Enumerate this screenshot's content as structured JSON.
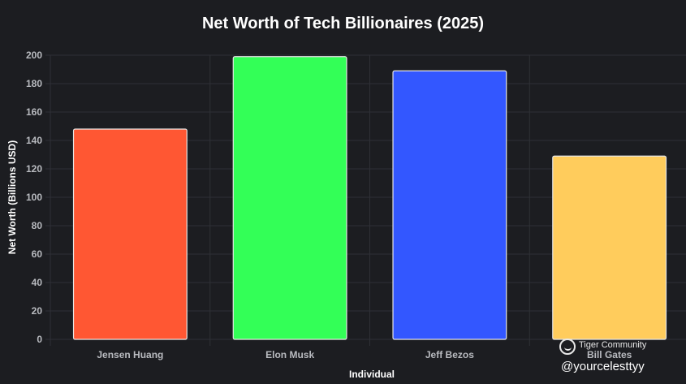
{
  "chart_data": {
    "type": "bar",
    "title": "Net Worth of Tech Billionaires (2025)",
    "xlabel": "Individual",
    "ylabel": "Net Worth (Billions USD)",
    "categories": [
      "Jensen Huang",
      "Elon Musk",
      "Jeff Bezos",
      "Bill Gates"
    ],
    "values": [
      148,
      199,
      189,
      129
    ],
    "colors": [
      "#ff5733",
      "#33ff57",
      "#3357ff",
      "#ffcc5c"
    ],
    "ylim": [
      0,
      200
    ],
    "yticks": [
      "0",
      "20",
      "40",
      "60",
      "80",
      "100",
      "120",
      "140",
      "160",
      "180",
      "200"
    ],
    "grid": true,
    "legend": "none"
  },
  "watermark": {
    "community": "Tiger Community",
    "handle": "@yourcelesttyy"
  },
  "colors": {
    "background": "#1c1d21",
    "grid": "#2e3036",
    "text": "#ffffff",
    "tick_text": "#b9bbc0"
  }
}
